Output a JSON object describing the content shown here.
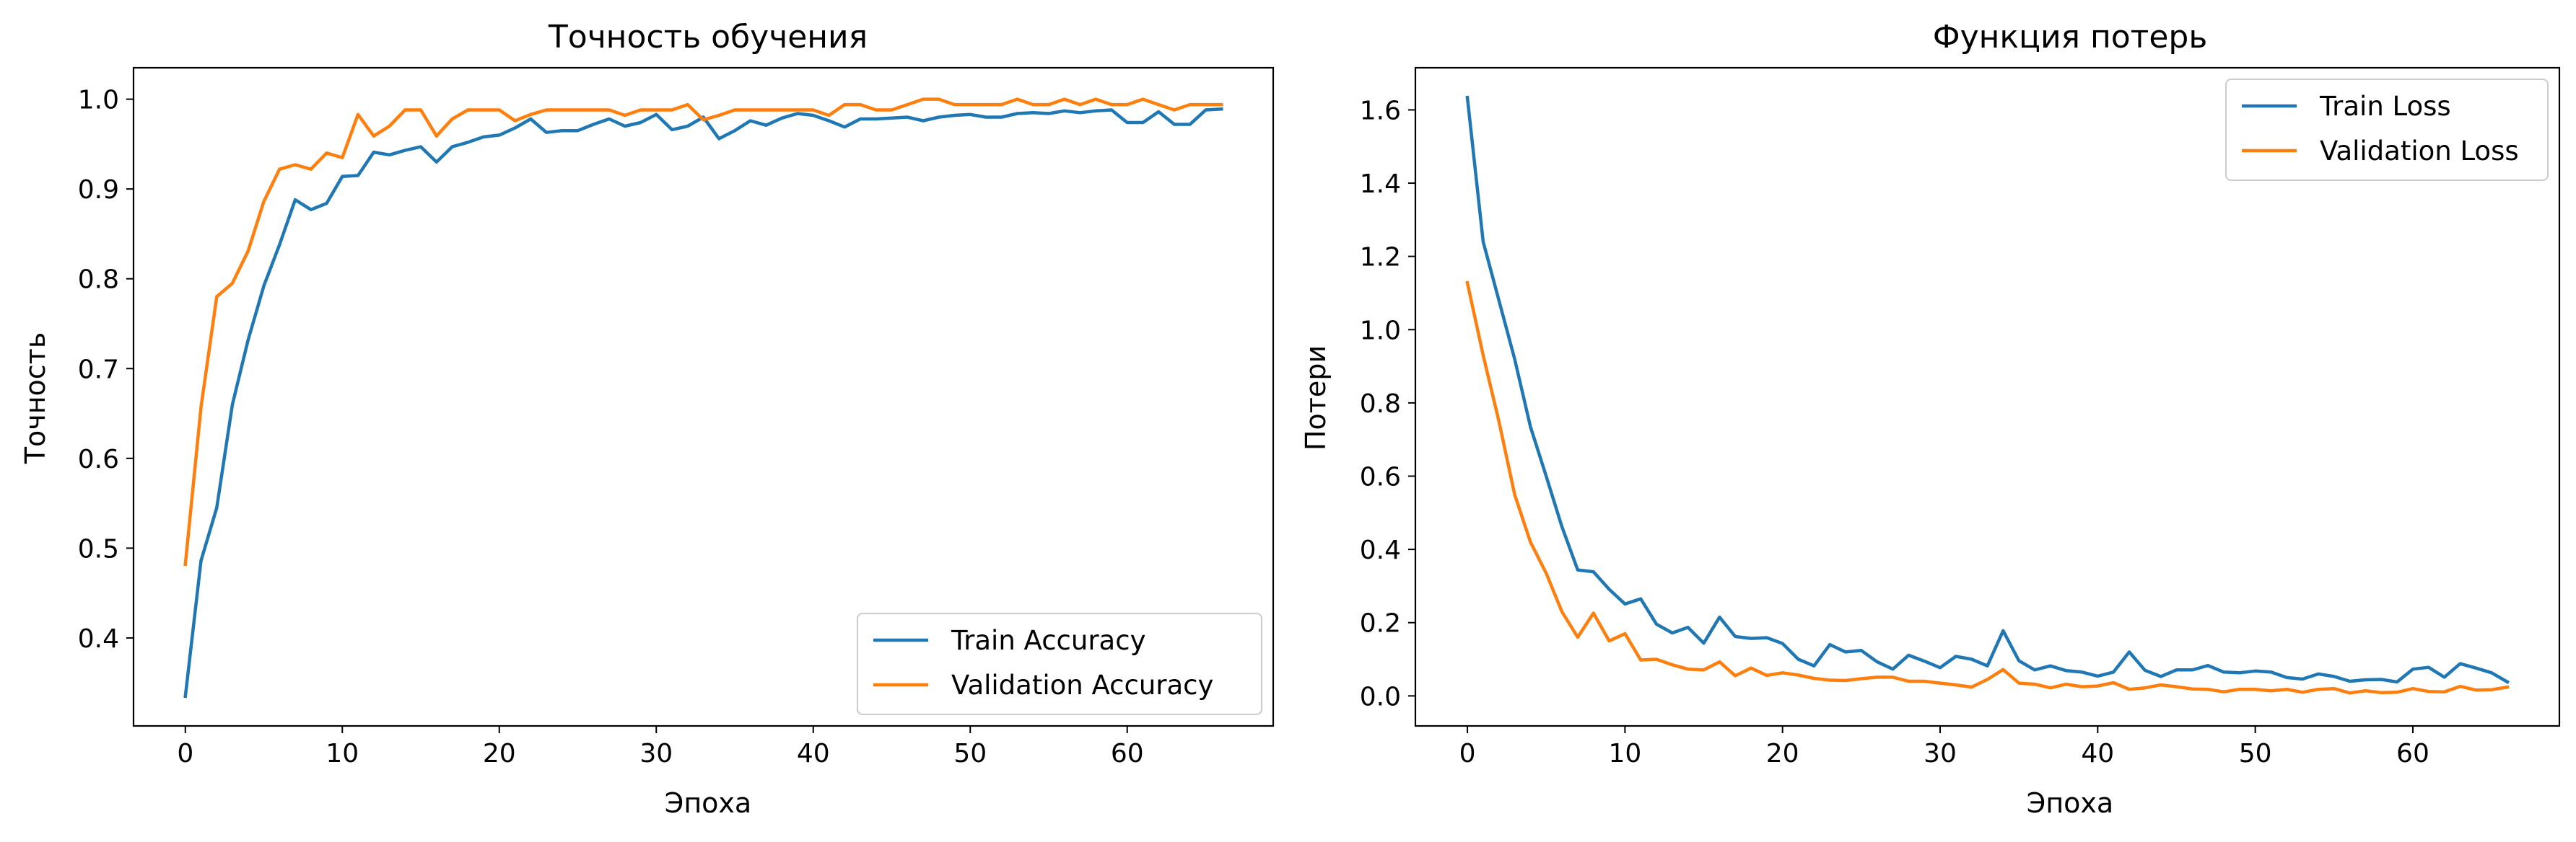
{
  "chart_data": [
    {
      "type": "line",
      "title": "Точность обучения",
      "xlabel": "Эпоха",
      "ylabel": "Точность",
      "xlim": [
        -3.3,
        69.3
      ],
      "ylim": [
        0.302,
        1.035
      ],
      "xticks": [
        0,
        10,
        20,
        30,
        40,
        50,
        60
      ],
      "yticks": [
        0.4,
        0.5,
        0.6,
        0.7,
        0.8,
        0.9,
        1.0
      ],
      "ytick_labels": [
        "0.4",
        "0.5",
        "0.6",
        "0.7",
        "0.8",
        "0.9",
        "1.0"
      ],
      "grid": false,
      "legend_position": "lower-right",
      "x": [
        0,
        1,
        2,
        3,
        4,
        5,
        6,
        7,
        8,
        9,
        10,
        11,
        12,
        13,
        14,
        15,
        16,
        17,
        18,
        19,
        20,
        21,
        22,
        23,
        24,
        25,
        26,
        27,
        28,
        29,
        30,
        31,
        32,
        33,
        34,
        35,
        36,
        37,
        38,
        39,
        40,
        41,
        42,
        43,
        44,
        45,
        46,
        47,
        48,
        49,
        50,
        51,
        52,
        53,
        54,
        55,
        56,
        57,
        58,
        59,
        60,
        61,
        62,
        63,
        64,
        65,
        66
      ],
      "series": [
        {
          "name": "Train Accuracy",
          "color": "#1f77b4",
          "values": [
            0.335,
            0.486,
            0.545,
            0.66,
            0.732,
            0.792,
            0.838,
            0.888,
            0.877,
            0.884,
            0.914,
            0.915,
            0.941,
            0.938,
            0.943,
            0.947,
            0.93,
            0.947,
            0.952,
            0.958,
            0.96,
            0.968,
            0.978,
            0.963,
            0.965,
            0.965,
            0.972,
            0.978,
            0.97,
            0.974,
            0.983,
            0.966,
            0.97,
            0.98,
            0.956,
            0.965,
            0.976,
            0.971,
            0.979,
            0.984,
            0.982,
            0.976,
            0.969,
            0.978,
            0.978,
            0.979,
            0.98,
            0.976,
            0.98,
            0.982,
            0.983,
            0.98,
            0.98,
            0.984,
            0.985,
            0.984,
            0.987,
            0.985,
            0.987,
            0.988,
            0.974,
            0.974,
            0.986,
            0.972,
            0.972,
            0.988,
            0.989
          ]
        },
        {
          "name": "Validation Accuracy",
          "color": "#ff7f0e",
          "values": [
            0.482,
            0.657,
            0.78,
            0.795,
            0.831,
            0.886,
            0.922,
            0.927,
            0.922,
            0.94,
            0.935,
            0.983,
            0.959,
            0.97,
            0.988,
            0.988,
            0.959,
            0.978,
            0.988,
            0.988,
            0.988,
            0.976,
            0.983,
            0.988,
            0.988,
            0.988,
            0.988,
            0.988,
            0.982,
            0.988,
            0.988,
            0.988,
            0.994,
            0.977,
            0.982,
            0.988,
            0.988,
            0.988,
            0.988,
            0.988,
            0.988,
            0.982,
            0.994,
            0.994,
            0.988,
            0.988,
            0.994,
            1.0,
            1.0,
            0.994,
            0.994,
            0.994,
            0.994,
            1.0,
            0.994,
            0.994,
            1.0,
            0.994,
            1.0,
            0.994,
            0.994,
            1.0,
            0.994,
            0.988,
            0.994,
            0.994,
            0.994
          ]
        }
      ]
    },
    {
      "type": "line",
      "title": "Функция потерь",
      "xlabel": "Эпоха",
      "ylabel": "Потери",
      "xlim": [
        -3.3,
        69.3
      ],
      "ylim": [
        -0.082,
        1.715
      ],
      "xticks": [
        0,
        10,
        20,
        30,
        40,
        50,
        60
      ],
      "yticks": [
        0.0,
        0.2,
        0.4,
        0.6,
        0.8,
        1.0,
        1.2,
        1.4,
        1.6
      ],
      "ytick_labels": [
        "0.0",
        "0.2",
        "0.4",
        "0.6",
        "0.8",
        "1.0",
        "1.2",
        "1.4",
        "1.6"
      ],
      "grid": false,
      "legend_position": "upper-right",
      "x": [
        0,
        1,
        2,
        3,
        4,
        5,
        6,
        7,
        8,
        9,
        10,
        11,
        12,
        13,
        14,
        15,
        16,
        17,
        18,
        19,
        20,
        21,
        22,
        23,
        24,
        25,
        26,
        27,
        28,
        29,
        30,
        31,
        32,
        33,
        34,
        35,
        36,
        37,
        38,
        39,
        40,
        41,
        42,
        43,
        44,
        45,
        46,
        47,
        48,
        49,
        50,
        51,
        52,
        53,
        54,
        55,
        56,
        57,
        58,
        59,
        60,
        61,
        62,
        63,
        64,
        65,
        66
      ],
      "series": [
        {
          "name": "Train Loss",
          "color": "#1f77b4",
          "values": [
            1.634,
            1.24,
            1.08,
            0.92,
            0.735,
            0.6,
            0.462,
            0.344,
            0.339,
            0.291,
            0.251,
            0.265,
            0.196,
            0.172,
            0.187,
            0.144,
            0.215,
            0.162,
            0.157,
            0.159,
            0.143,
            0.1,
            0.082,
            0.14,
            0.12,
            0.124,
            0.093,
            0.073,
            0.111,
            0.095,
            0.077,
            0.108,
            0.1,
            0.082,
            0.178,
            0.096,
            0.071,
            0.082,
            0.069,
            0.065,
            0.054,
            0.065,
            0.12,
            0.07,
            0.053,
            0.071,
            0.071,
            0.083,
            0.065,
            0.063,
            0.068,
            0.065,
            0.05,
            0.046,
            0.06,
            0.053,
            0.04,
            0.044,
            0.045,
            0.038,
            0.073,
            0.078,
            0.051,
            0.088,
            0.076,
            0.063,
            0.038
          ]
        },
        {
          "name": "Validation Loss",
          "color": "#ff7f0e",
          "values": [
            1.128,
            0.93,
            0.75,
            0.55,
            0.42,
            0.335,
            0.23,
            0.16,
            0.226,
            0.15,
            0.17,
            0.098,
            0.1,
            0.085,
            0.073,
            0.071,
            0.093,
            0.055,
            0.076,
            0.056,
            0.063,
            0.057,
            0.048,
            0.043,
            0.042,
            0.047,
            0.051,
            0.051,
            0.04,
            0.04,
            0.035,
            0.03,
            0.024,
            0.045,
            0.072,
            0.035,
            0.032,
            0.022,
            0.032,
            0.025,
            0.027,
            0.036,
            0.018,
            0.022,
            0.03,
            0.025,
            0.019,
            0.018,
            0.011,
            0.018,
            0.018,
            0.014,
            0.018,
            0.01,
            0.018,
            0.02,
            0.008,
            0.014,
            0.009,
            0.01,
            0.02,
            0.012,
            0.011,
            0.026,
            0.016,
            0.017,
            0.024
          ]
        }
      ]
    }
  ]
}
